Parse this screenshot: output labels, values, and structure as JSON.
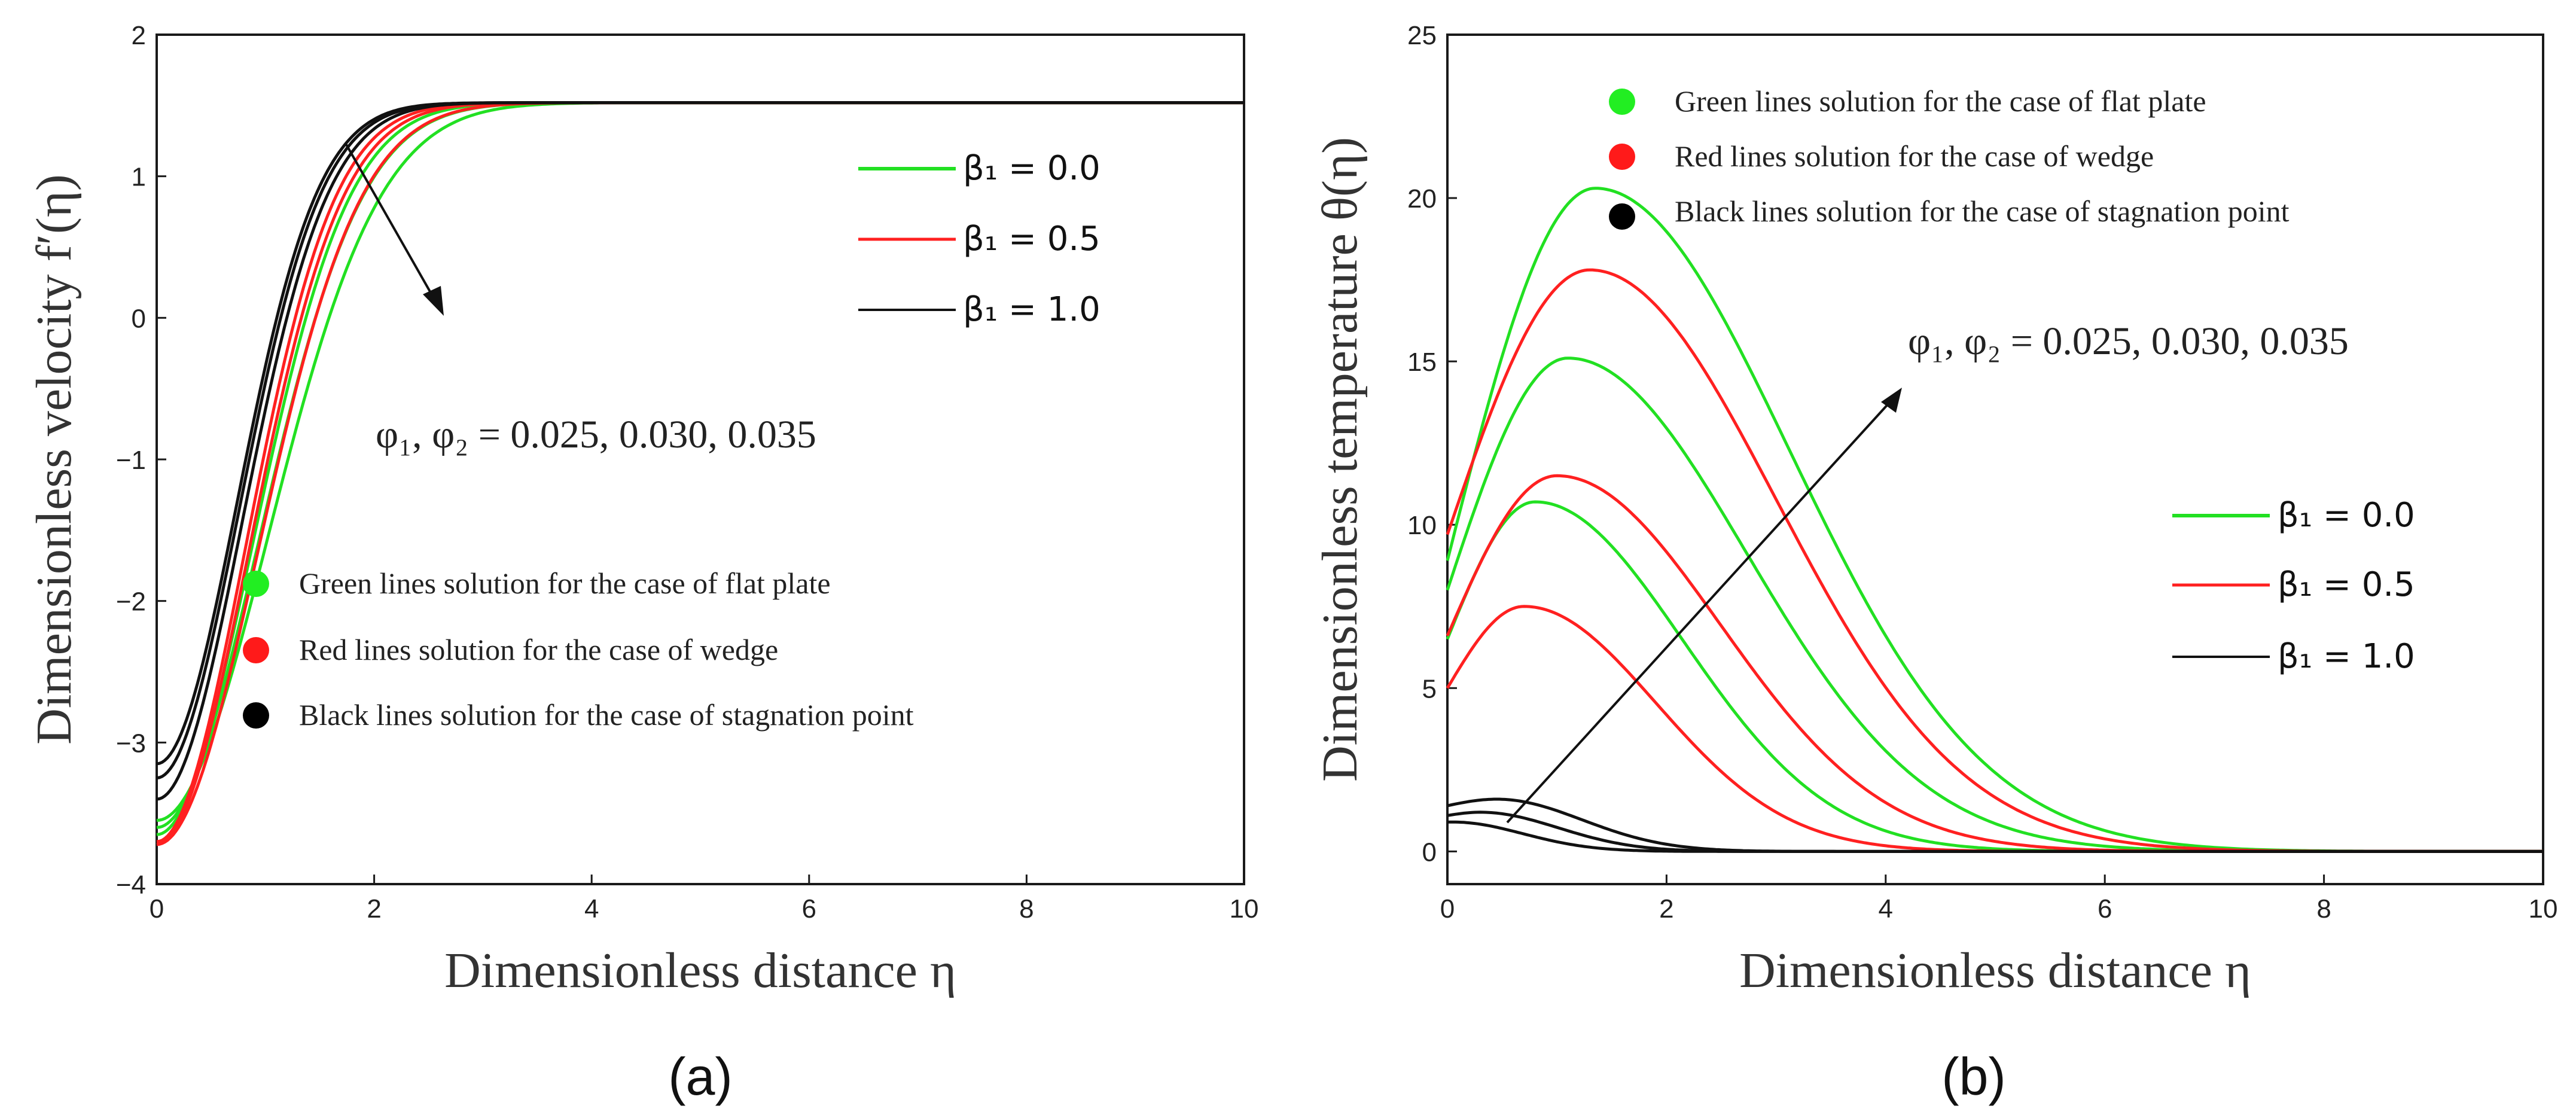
{
  "chart_data": [
    {
      "type": "line",
      "panel_label": "(a)",
      "xlabel": "Dimensionless distance η",
      "ylabel": "Dimensionless velocity f′(η)",
      "xlim": [
        0,
        10
      ],
      "ylim": [
        -4,
        2
      ],
      "xticks": [
        "0",
        "2",
        "4",
        "6",
        "8",
        "10"
      ],
      "yticks": [
        "−4",
        "−3",
        "−2",
        "−1",
        "0",
        "1",
        "2"
      ],
      "annotation": "φ₁, φ₂ = 0.025, 0.030, 0.035",
      "legend_lines": [
        {
          "label": "β₁ = 0.0",
          "color": "#22e022"
        },
        {
          "label": "β₁ = 0.5",
          "color": "#ff2020"
        },
        {
          "label": "β₁ = 1.0",
          "color": "#111111"
        }
      ],
      "legend_dots": [
        {
          "label": "Green lines solution for the case of flat plate",
          "color": "#22ee22"
        },
        {
          "label": "Red lines solution for the case of wedge",
          "color": "#ff1a1a"
        },
        {
          "label": "Black lines solution for the case of stagnation point",
          "color": "#000000"
        }
      ],
      "series": [
        {
          "name": "green 1",
          "color": "#22e022",
          "kind": "velocity",
          "y0": -3.55,
          "yinf": 1.52,
          "k": 0.48
        },
        {
          "name": "green 2",
          "color": "#22e022",
          "kind": "velocity",
          "y0": -3.6,
          "yinf": 1.52,
          "k": 0.57
        },
        {
          "name": "green 3",
          "color": "#22e022",
          "kind": "velocity",
          "y0": -3.65,
          "yinf": 1.52,
          "k": 0.65
        },
        {
          "name": "red 1",
          "color": "#ff2020",
          "kind": "velocity",
          "y0": -3.72,
          "yinf": 1.52,
          "k": 0.58
        },
        {
          "name": "red 2",
          "color": "#ff2020",
          "kind": "velocity",
          "y0": -3.72,
          "yinf": 1.52,
          "k": 0.7
        },
        {
          "name": "red 3",
          "color": "#ff2020",
          "kind": "velocity",
          "y0": -3.7,
          "yinf": 1.52,
          "k": 0.76
        },
        {
          "name": "black 1",
          "color": "#111111",
          "kind": "velocity",
          "y0": -3.15,
          "yinf": 1.52,
          "k": 0.92
        },
        {
          "name": "black 2",
          "color": "#111111",
          "kind": "velocity",
          "y0": -3.25,
          "yinf": 1.52,
          "k": 0.88
        },
        {
          "name": "black 3",
          "color": "#111111",
          "kind": "velocity",
          "y0": -3.4,
          "yinf": 1.52,
          "k": 0.82
        }
      ]
    },
    {
      "type": "line",
      "panel_label": "(b)",
      "xlabel": "Dimensionless distance η",
      "ylabel": "Dimensionless temperature θ(η)",
      "xlim": [
        0,
        10
      ],
      "ylim": [
        -1,
        25
      ],
      "xticks": [
        "0",
        "2",
        "4",
        "6",
        "8",
        "10"
      ],
      "yticks": [
        "0",
        "5",
        "10",
        "15",
        "20",
        "25"
      ],
      "annotation": "φ₁, φ₂ = 0.025, 0.030, 0.035",
      "legend_lines": [
        {
          "label": "β₁ = 0.0",
          "color": "#22e022"
        },
        {
          "label": "β₁ = 0.5",
          "color": "#ff2020"
        },
        {
          "label": "β₁ = 1.0",
          "color": "#111111"
        }
      ],
      "legend_dots": [
        {
          "label": "Green lines solution for the case of flat plate",
          "color": "#22ee22"
        },
        {
          "label": "Red lines solution for the case of wedge",
          "color": "#ff1a1a"
        },
        {
          "label": "Black lines solution for the case of stagnation point",
          "color": "#000000"
        }
      ],
      "series": [
        {
          "name": "green 1",
          "color": "#22e022",
          "kind": "temperature",
          "y0": 6.5,
          "peak": 10.7,
          "xp": 0.8,
          "decay": 1.9
        },
        {
          "name": "green 2",
          "color": "#22e022",
          "kind": "temperature",
          "y0": 8.0,
          "peak": 15.1,
          "xp": 1.1,
          "decay": 2.3
        },
        {
          "name": "green 3",
          "color": "#22e022",
          "kind": "temperature",
          "y0": 8.9,
          "peak": 20.3,
          "xp": 1.35,
          "decay": 2.5
        },
        {
          "name": "red 1",
          "color": "#ff2020",
          "kind": "temperature",
          "y0": 5.0,
          "peak": 7.5,
          "xp": 0.7,
          "decay": 1.7
        },
        {
          "name": "red 2",
          "color": "#ff2020",
          "kind": "temperature",
          "y0": 6.6,
          "peak": 11.5,
          "xp": 1.0,
          "decay": 2.1
        },
        {
          "name": "red 3",
          "color": "#ff2020",
          "kind": "temperature",
          "y0": 9.7,
          "peak": 17.8,
          "xp": 1.3,
          "decay": 2.4
        },
        {
          "name": "black 1",
          "color": "#111111",
          "kind": "temperature",
          "y0": 0.9,
          "peak": 0.9,
          "xp": 0.05,
          "decay": 0.9
        },
        {
          "name": "black 2",
          "color": "#111111",
          "kind": "temperature",
          "y0": 1.1,
          "peak": 1.2,
          "xp": 0.3,
          "decay": 1.0
        },
        {
          "name": "black 3",
          "color": "#111111",
          "kind": "temperature",
          "y0": 1.4,
          "peak": 1.6,
          "xp": 0.45,
          "decay": 1.1
        }
      ]
    }
  ]
}
